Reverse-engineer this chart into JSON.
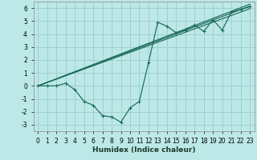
{
  "xlabel": "Humidex (Indice chaleur)",
  "xlim": [
    -0.5,
    23.5
  ],
  "ylim": [
    -3.5,
    6.5
  ],
  "xticks": [
    0,
    1,
    2,
    3,
    4,
    5,
    6,
    7,
    8,
    9,
    10,
    11,
    12,
    13,
    14,
    15,
    16,
    17,
    18,
    19,
    20,
    21,
    22,
    23
  ],
  "yticks": [
    -3,
    -2,
    -1,
    0,
    1,
    2,
    3,
    4,
    5,
    6
  ],
  "bg_color": "#bde8e8",
  "grid_color": "#9ecfcf",
  "line_color": "#1a6b5a",
  "main_x": [
    0,
    1,
    2,
    3,
    4,
    5,
    6,
    7,
    8,
    9,
    10,
    11,
    12,
    13,
    14,
    15,
    16,
    17,
    18,
    19,
    20,
    21,
    22,
    23
  ],
  "main_y": [
    0,
    0,
    0,
    0.2,
    -0.3,
    -1.2,
    -1.5,
    -2.3,
    -2.4,
    -2.8,
    -1.7,
    -1.2,
    1.8,
    4.9,
    4.6,
    4.1,
    4.3,
    4.7,
    4.2,
    5.1,
    4.3,
    5.7,
    5.9,
    6.1
  ],
  "ref_lines": [
    {
      "x": [
        0,
        23
      ],
      "y": [
        0.0,
        6.15
      ]
    },
    {
      "x": [
        0,
        23
      ],
      "y": [
        0.0,
        5.95
      ]
    },
    {
      "x": [
        0,
        23
      ],
      "y": [
        0.0,
        6.3
      ]
    }
  ],
  "tick_fontsize": 5.5,
  "xlabel_fontsize": 6.5
}
